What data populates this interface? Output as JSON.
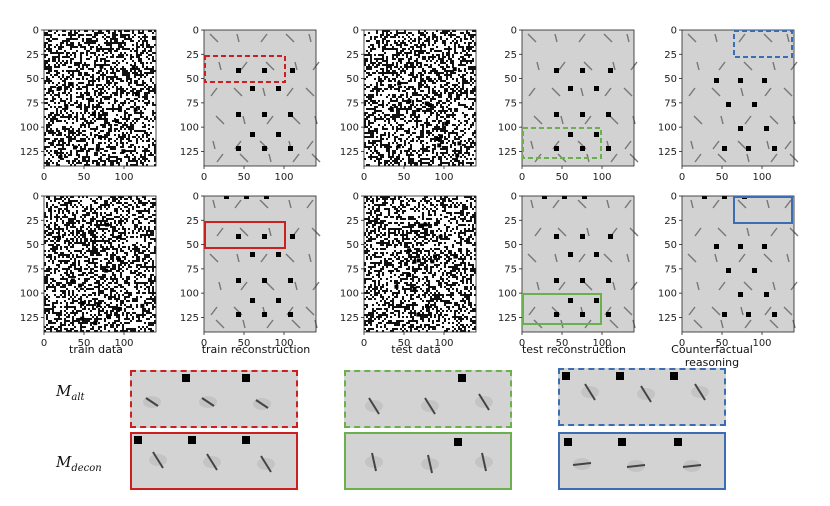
{
  "figure": {
    "axis_ticks_y": [
      "0",
      "25",
      "50",
      "75",
      "100",
      "125"
    ],
    "axis_ticks_x": [
      "0",
      "50",
      "100"
    ],
    "column_labels": [
      "train data",
      "train reconstruction",
      "test data",
      "test reconstruction",
      "Counterfactual reasoning"
    ],
    "row_labels": {
      "alt": {
        "base": "M",
        "sub": "alt"
      },
      "decon": {
        "base": "M",
        "sub": "decon"
      }
    },
    "colors": {
      "red": "#cc1f1f",
      "green": "#6ab04c",
      "blue": "#3a6db3",
      "panel_gray": "#d2d2d2"
    }
  }
}
